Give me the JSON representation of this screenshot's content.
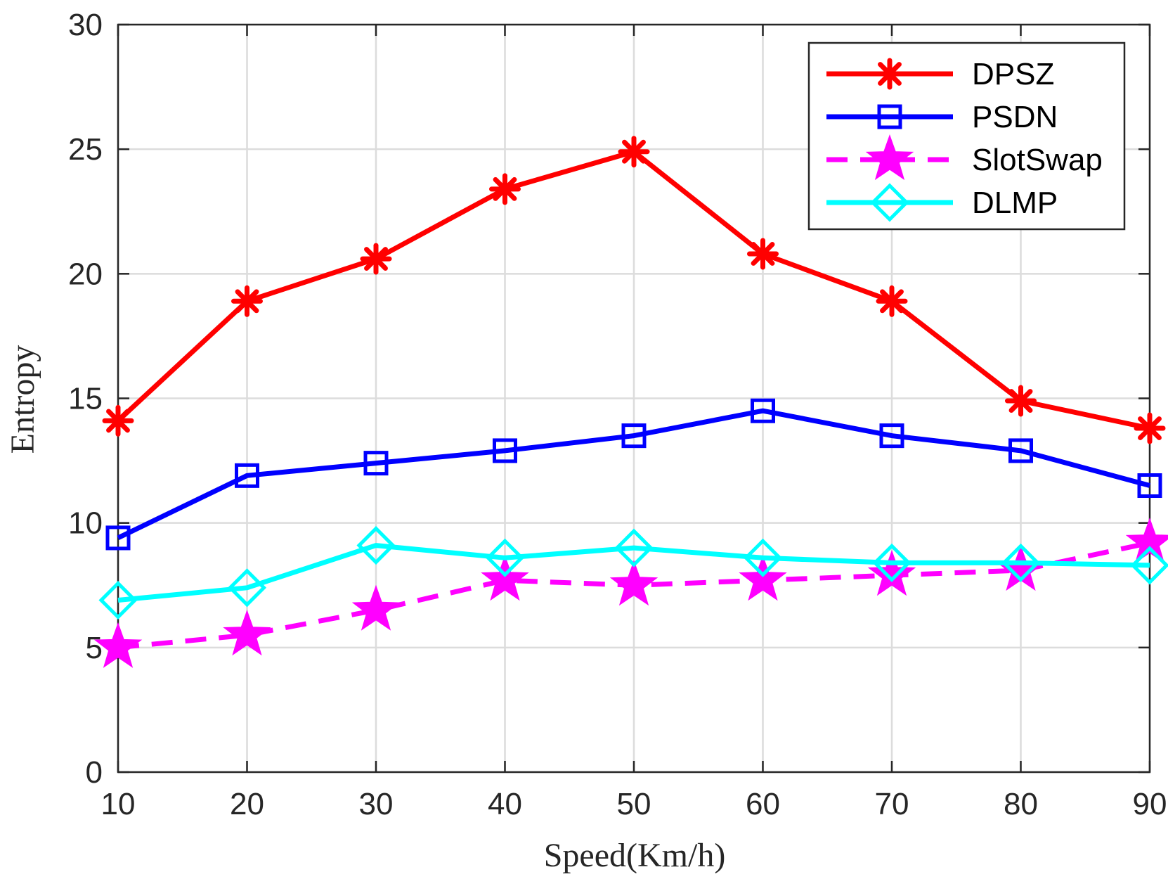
{
  "chart_data": {
    "type": "line",
    "title": "",
    "xlabel": "Speed(Km/h)",
    "ylabel": "Entropy",
    "x": [
      10,
      20,
      30,
      40,
      50,
      60,
      70,
      80,
      90
    ],
    "xlim": [
      10,
      90
    ],
    "ylim": [
      0,
      30
    ],
    "xticks": [
      "10",
      "20",
      "30",
      "40",
      "50",
      "60",
      "70",
      "80",
      "90"
    ],
    "yticks": [
      "0",
      "5",
      "10",
      "15",
      "20",
      "25",
      "30"
    ],
    "grid": true,
    "legend_position": "top-right",
    "series": [
      {
        "name": "DPSZ",
        "color": "#ff0000",
        "marker": "asterisk",
        "dash": "solid",
        "values": [
          14.1,
          18.9,
          20.6,
          23.4,
          24.9,
          20.8,
          18.9,
          14.9,
          13.8
        ]
      },
      {
        "name": "PSDN",
        "color": "#0000ff",
        "marker": "square",
        "dash": "solid",
        "values": [
          9.4,
          11.9,
          12.4,
          12.9,
          13.5,
          14.5,
          13.5,
          12.9,
          11.5
        ]
      },
      {
        "name": "SlotSwap",
        "color": "#ff00ff",
        "marker": "pentagram",
        "dash": "dashed",
        "values": [
          5.0,
          5.5,
          6.5,
          7.7,
          7.5,
          7.7,
          7.9,
          8.1,
          9.2
        ]
      },
      {
        "name": "DLMP",
        "color": "#00ffff",
        "marker": "diamond",
        "dash": "solid",
        "values": [
          6.9,
          7.4,
          9.1,
          8.6,
          9.0,
          8.6,
          8.4,
          8.4,
          8.3
        ]
      }
    ]
  }
}
